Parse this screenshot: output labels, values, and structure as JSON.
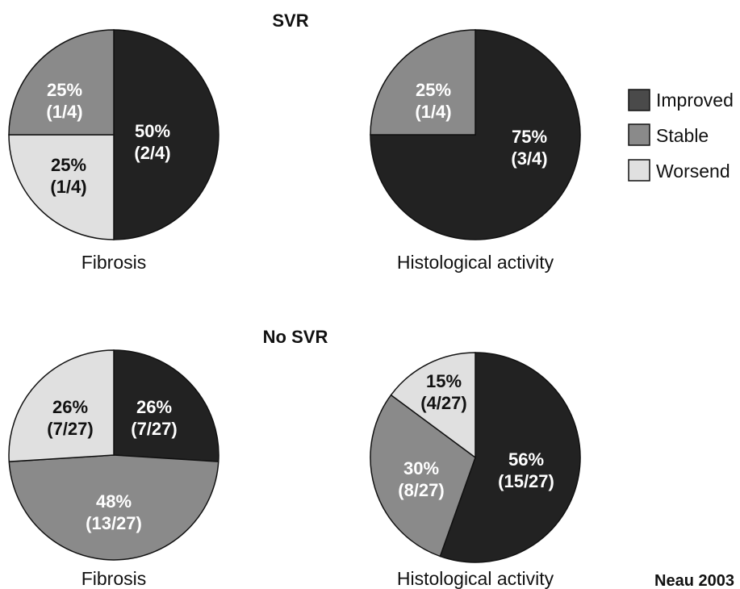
{
  "source": "Neau 2003",
  "colors": {
    "Improved": "#222222",
    "Stable": "#8a8a8a",
    "Worsend": "#e0e0e0",
    "outline": "#111111"
  },
  "legend": [
    {
      "name": "Improved",
      "color": "#4a4a4a"
    },
    {
      "name": "Stable",
      "color": "#8a8a8a"
    },
    {
      "name": "Worsend",
      "color": "#e0e0e0"
    }
  ],
  "chart_data": [
    {
      "type": "pie",
      "group": "SVR",
      "title": "Fibrosis",
      "slices": [
        {
          "name": "Improved",
          "percent": 50,
          "label": "50%",
          "count": "(2/4)"
        },
        {
          "name": "Worsend",
          "percent": 25,
          "label": "25%",
          "count": "(1/4)"
        },
        {
          "name": "Stable",
          "percent": 25,
          "label": "25%",
          "count": "(1/4)"
        }
      ]
    },
    {
      "type": "pie",
      "group": "SVR",
      "title": "Histological activity",
      "slices": [
        {
          "name": "Improved",
          "percent": 75,
          "label": "75%",
          "count": "(3/4)"
        },
        {
          "name": "Stable",
          "percent": 25,
          "label": "25%",
          "count": "(1/4)"
        }
      ]
    },
    {
      "type": "pie",
      "group": "No SVR",
      "title": "Fibrosis",
      "slices": [
        {
          "name": "Improved",
          "percent": 26,
          "label": "26%",
          "count": "(7/27)"
        },
        {
          "name": "Stable",
          "percent": 48,
          "label": "48%",
          "count": "(13/27)"
        },
        {
          "name": "Worsend",
          "percent": 26,
          "label": "26%",
          "count": "(7/27)"
        }
      ]
    },
    {
      "type": "pie",
      "group": "No SVR",
      "title": "Histological activity",
      "slices": [
        {
          "name": "Improved",
          "percent": 56,
          "label": "56%",
          "count": "(15/27)"
        },
        {
          "name": "Stable",
          "percent": 30,
          "label": "30%",
          "count": "(8/27)"
        },
        {
          "name": "Worsend",
          "percent": 15,
          "label": "15%",
          "count": "(4/27)"
        }
      ]
    }
  ]
}
